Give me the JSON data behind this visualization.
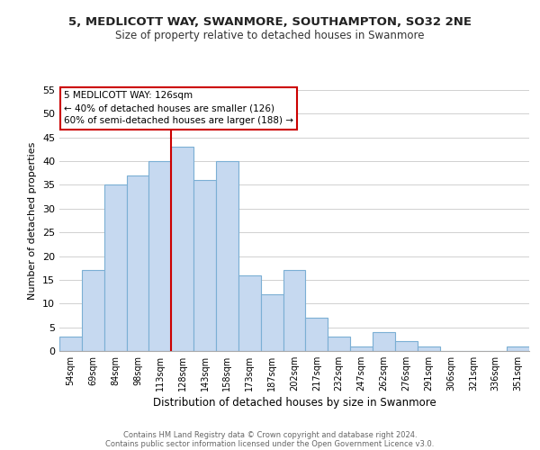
{
  "title1": "5, MEDLICOTT WAY, SWANMORE, SOUTHAMPTON, SO32 2NE",
  "title2": "Size of property relative to detached houses in Swanmore",
  "xlabel": "Distribution of detached houses by size in Swanmore",
  "ylabel": "Number of detached properties",
  "bar_labels": [
    "54sqm",
    "69sqm",
    "84sqm",
    "98sqm",
    "113sqm",
    "128sqm",
    "143sqm",
    "158sqm",
    "173sqm",
    "187sqm",
    "202sqm",
    "217sqm",
    "232sqm",
    "247sqm",
    "262sqm",
    "276sqm",
    "291sqm",
    "306sqm",
    "321sqm",
    "336sqm",
    "351sqm"
  ],
  "bar_values": [
    3,
    17,
    35,
    37,
    40,
    43,
    36,
    40,
    16,
    12,
    17,
    7,
    3,
    1,
    4,
    2,
    1,
    0,
    0,
    0,
    1
  ],
  "bar_color": "#c6d9f0",
  "bar_edge_color": "#7bafd4",
  "reference_line_color": "#cc0000",
  "annotation_line0": "5 MEDLICOTT WAY: 126sqm",
  "annotation_line1": "← 40% of detached houses are smaller (126)",
  "annotation_line2": "60% of semi-detached houses are larger (188) →",
  "annotation_box_edge_color": "#cc0000",
  "ylim": [
    0,
    55
  ],
  "yticks": [
    0,
    5,
    10,
    15,
    20,
    25,
    30,
    35,
    40,
    45,
    50,
    55
  ],
  "footer1": "Contains HM Land Registry data © Crown copyright and database right 2024.",
  "footer2": "Contains public sector information licensed under the Open Government Licence v3.0.",
  "bg_color": "#ffffff",
  "grid_color": "#d0d0d0"
}
